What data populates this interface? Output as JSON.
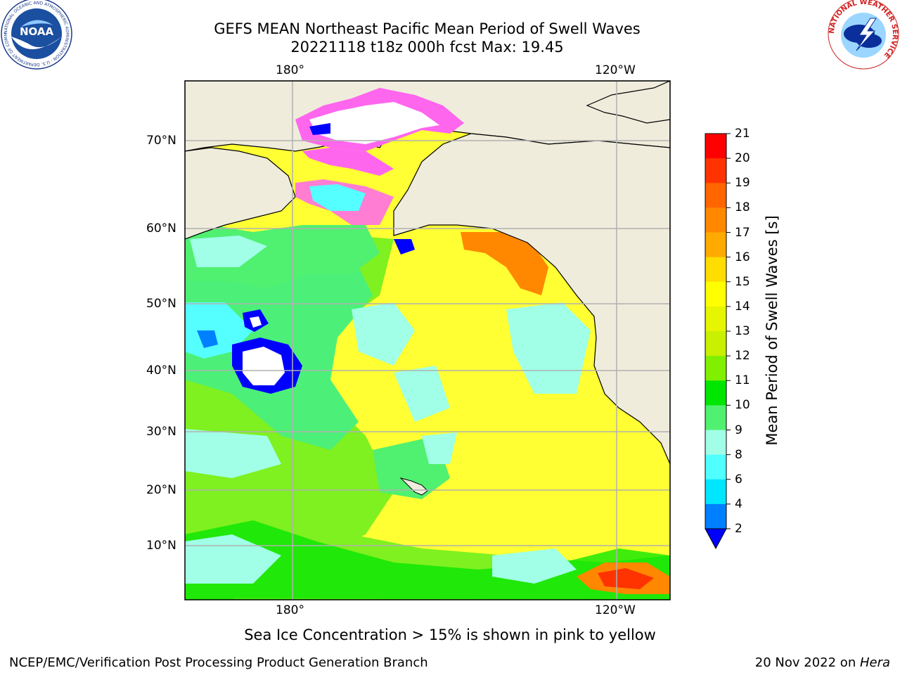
{
  "title": {
    "line1": "GEFS MEAN Northeast Pacific Mean Period of Swell Waves",
    "line2": "20221118 t18z 000h fcst   Max: 19.45"
  },
  "map": {
    "lon_labels_top": [
      "180°",
      "120°W"
    ],
    "lon_labels_bottom": [
      "180°",
      "120°W"
    ],
    "lat_labels": [
      "70°N",
      "60°N",
      "50°N",
      "40°N",
      "30°N",
      "20°N",
      "10°N"
    ],
    "grid": true,
    "colors": {
      "land": "#efecdc",
      "coast": "#000000",
      "grid": "#b0b0b0",
      "ice_pink": "#ff66ee"
    }
  },
  "colorbar": {
    "label": "Mean Period of Swell Waves [s]",
    "ticks": [
      "21",
      "20",
      "19",
      "18",
      "17",
      "16",
      "15",
      "14",
      "13",
      "12",
      "11",
      "10",
      "9",
      "8",
      "6",
      "4",
      "2"
    ],
    "colors": [
      "#ff0000",
      "#ff3300",
      "#ff6600",
      "#ff8800",
      "#ffaa00",
      "#ffdd00",
      "#ffff00",
      "#e6f500",
      "#c8f000",
      "#80f000",
      "#00e600",
      "#50f070",
      "#a0ffe6",
      "#50ffff",
      "#00e6ff",
      "#0080ff"
    ],
    "extend_color": "#0000ff"
  },
  "note": "Sea Ice Concentration > 15% is shown in pink to yellow",
  "footer": {
    "left": "NCEP/EMC/Verification Post Processing Product Generation Branch",
    "right_prefix": "20 Nov 2022 on ",
    "right_host": "Hera"
  },
  "logos": {
    "noaa_text": "NOAA",
    "noaa_ring": "NATIONAL OCEANIC AND ATMOSPHERIC ADMINISTRATION · U.S. DEPARTMENT OF COMMERCE",
    "nws_ring": "NATIONAL WEATHER SERVICE"
  }
}
